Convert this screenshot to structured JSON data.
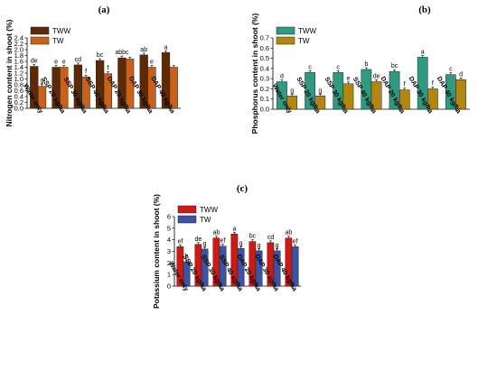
{
  "chart_data": [
    {
      "panel": "(a)",
      "type": "bar",
      "ylabel": "Nitrogen content in  shoot (%)",
      "ylim": [
        0,
        2.4
      ],
      "yticks": [
        "0.0",
        "0.2",
        "0.4",
        "0.6",
        "0.8",
        "1.0",
        "1.2",
        "1.4",
        "1.6",
        "1.8",
        "2.0",
        "2.2",
        "2.4"
      ],
      "categories": [
        "Water only",
        "SSP 20 kg/ha",
        "SSP 30 kg/ha",
        "SSP 40 kg/ha",
        "DAP 20 kg/ha",
        "DAP 30 kg/ha",
        "DAP 40 kg/ha"
      ],
      "legend_position": "top-left",
      "series": [
        {
          "name": "TWW",
          "color": "#5c2a05",
          "values": [
            1.43,
            1.4,
            1.48,
            1.63,
            1.72,
            1.82,
            1.9
          ],
          "letters": [
            "de",
            "e",
            "cd",
            "bc",
            "abbc",
            "ab",
            "a"
          ]
        },
        {
          "name": "TW",
          "color": "#c8621a",
          "values": [
            0.75,
            1.4,
            1.07,
            1.18,
            1.68,
            1.4,
            1.4
          ],
          "letters": [
            "g",
            "e",
            "f",
            "f",
            "",
            "e",
            ""
          ]
        }
      ]
    },
    {
      "panel": "(b)",
      "type": "bar",
      "ylabel": "Phosphorus content in  shoot (%)",
      "ylim": [
        0,
        0.7
      ],
      "yticks": [
        "0.0",
        "0.1",
        "0.2",
        "0.3",
        "0.4",
        "0.5",
        "0.6",
        "0.7"
      ],
      "categories": [
        "Water only",
        "SSP 20 kg/ha",
        "SSP 30 kg/ha",
        "SSP 40 kg/ha",
        "DAP 20 kg/ha",
        "DAP 30 kg/ha",
        "DAP 40 kg/ha"
      ],
      "legend_position": "top-left",
      "series": [
        {
          "name": "TWW",
          "color": "#2f9a80",
          "values": [
            0.27,
            0.36,
            0.36,
            0.39,
            0.37,
            0.51,
            0.34
          ],
          "letters": [
            "d",
            "c",
            "c",
            "b",
            "bc",
            "a",
            "c"
          ]
        },
        {
          "name": "TW",
          "color": "#b2860f",
          "values": [
            0.13,
            0.13,
            0.25,
            0.27,
            0.19,
            0.2,
            0.29
          ],
          "letters": [
            "g",
            "g",
            "e",
            "de",
            "f",
            "f",
            "d"
          ]
        }
      ]
    },
    {
      "panel": "(c)",
      "type": "bar",
      "ylabel": "Potassium content in  shoot (%)",
      "ylim": [
        0,
        6
      ],
      "yticks": [
        "0",
        "1",
        "2",
        "3",
        "4",
        "5",
        "6"
      ],
      "categories": [
        "Water only",
        "SSP 20 kg/ha",
        "SSP 30 kg/ha",
        "SSP 40 kg/ha",
        "DAP 20 kg/ha",
        "DAP 30 kg/ha",
        "DAP 40 kg/ha"
      ],
      "legend_position": "top-left",
      "series": [
        {
          "name": "TWW",
          "color": "#c81c14",
          "values": [
            3.4,
            3.6,
            4.15,
            4.5,
            3.85,
            3.75,
            4.15
          ],
          "letters": [
            "ef",
            "de",
            "ab",
            "a",
            "bc",
            "cd",
            "ab"
          ]
        },
        {
          "name": "TW",
          "color": "#3c53a6",
          "values": [
            2.1,
            3.2,
            3.45,
            3.25,
            3.05,
            3.05,
            3.4
          ],
          "letters": [
            "h",
            "g",
            "ef",
            "g",
            "g",
            "g",
            "ef"
          ]
        }
      ]
    }
  ]
}
